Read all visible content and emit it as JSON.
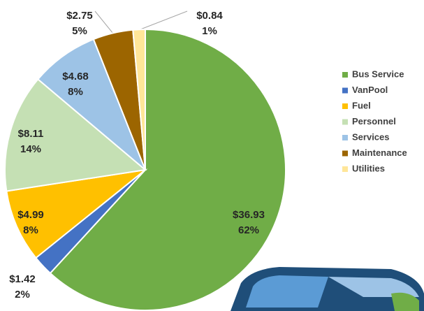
{
  "chart_data": {
    "type": "pie",
    "categories": [
      "Bus Service",
      "VanPool",
      "Fuel",
      "Personnel",
      "Services",
      "Maintenance",
      "Utilities"
    ],
    "values": [
      36.93,
      1.42,
      4.99,
      8.11,
      4.68,
      2.75,
      0.84
    ],
    "value_labels": [
      "$36.93",
      "$1.42",
      "$4.99",
      "$8.11",
      "$4.68",
      "$2.75",
      "$0.84"
    ],
    "percent_labels": [
      "62%",
      "2%",
      "8%",
      "14%",
      "8%",
      "5%",
      "1%"
    ],
    "colors": [
      "#70ad47",
      "#4472c4",
      "#ffc000",
      "#c5e0b4",
      "#9dc3e6",
      "#9c6500",
      "#ffe699"
    ],
    "legend": "right"
  }
}
